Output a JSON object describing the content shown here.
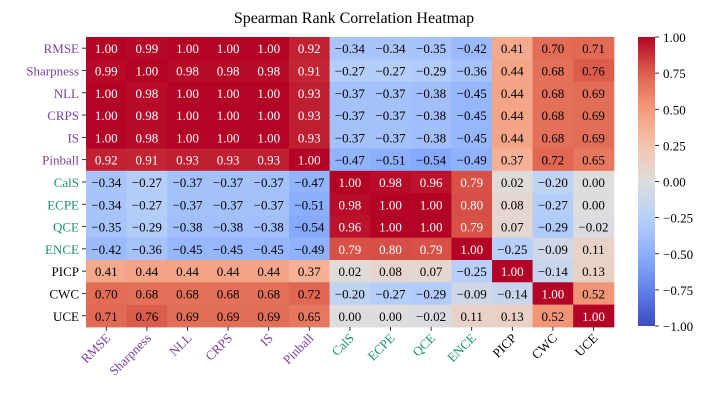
{
  "chart_data": {
    "type": "heatmap",
    "title": "Spearman Rank Correlation Heatmap",
    "labels": [
      "RMSE",
      "Sharpness",
      "NLL",
      "CRPS",
      "IS",
      "Pinball",
      "CalS",
      "ECPE",
      "QCE",
      "ENCE",
      "PICP",
      "CWC",
      "UCE"
    ],
    "label_groups": [
      "accuracy",
      "accuracy",
      "accuracy",
      "accuracy",
      "accuracy",
      "accuracy",
      "calibration",
      "calibration",
      "calibration",
      "calibration",
      "other",
      "other",
      "other"
    ],
    "group_colors": {
      "accuracy": "#7b3f9e",
      "calibration": "#17936b",
      "other": "#000000"
    },
    "matrix": [
      [
        1.0,
        0.99,
        1.0,
        1.0,
        1.0,
        0.92,
        -0.34,
        -0.34,
        -0.35,
        -0.42,
        0.41,
        0.7,
        0.71
      ],
      [
        0.99,
        1.0,
        0.98,
        0.98,
        0.98,
        0.91,
        -0.27,
        -0.27,
        -0.29,
        -0.36,
        0.44,
        0.68,
        0.76
      ],
      [
        1.0,
        0.98,
        1.0,
        1.0,
        1.0,
        0.93,
        -0.37,
        -0.37,
        -0.38,
        -0.45,
        0.44,
        0.68,
        0.69
      ],
      [
        1.0,
        0.98,
        1.0,
        1.0,
        1.0,
        0.93,
        -0.37,
        -0.37,
        -0.38,
        -0.45,
        0.44,
        0.68,
        0.69
      ],
      [
        1.0,
        0.98,
        1.0,
        1.0,
        1.0,
        0.93,
        -0.37,
        -0.37,
        -0.38,
        -0.45,
        0.44,
        0.68,
        0.69
      ],
      [
        0.92,
        0.91,
        0.93,
        0.93,
        0.93,
        1.0,
        -0.47,
        -0.51,
        -0.54,
        -0.49,
        0.37,
        0.72,
        0.65
      ],
      [
        -0.34,
        -0.27,
        -0.37,
        -0.37,
        -0.37,
        -0.47,
        1.0,
        0.98,
        0.96,
        0.79,
        0.02,
        -0.2,
        0.0
      ],
      [
        -0.34,
        -0.27,
        -0.37,
        -0.37,
        -0.37,
        -0.51,
        0.98,
        1.0,
        1.0,
        0.8,
        0.08,
        -0.27,
        0.0
      ],
      [
        -0.35,
        -0.29,
        -0.38,
        -0.38,
        -0.38,
        -0.54,
        0.96,
        1.0,
        1.0,
        0.79,
        0.07,
        -0.29,
        -0.02
      ],
      [
        -0.42,
        -0.36,
        -0.45,
        -0.45,
        -0.45,
        -0.49,
        0.79,
        0.8,
        0.79,
        1.0,
        -0.25,
        -0.09,
        0.11
      ],
      [
        0.41,
        0.44,
        0.44,
        0.44,
        0.44,
        0.37,
        0.02,
        0.08,
        0.07,
        -0.25,
        1.0,
        -0.14,
        0.13
      ],
      [
        0.7,
        0.68,
        0.68,
        0.68,
        0.68,
        0.72,
        -0.2,
        -0.27,
        -0.29,
        -0.09,
        -0.14,
        1.0,
        0.52
      ],
      [
        0.71,
        0.76,
        0.69,
        0.69,
        0.69,
        0.65,
        0.0,
        0.0,
        -0.02,
        0.11,
        0.13,
        0.52,
        1.0
      ]
    ],
    "colormap": "coolwarm",
    "vmin": -1.0,
    "vmax": 1.0,
    "colorbar_ticks": [
      "1.00",
      "0.75",
      "0.50",
      "0.25",
      "0.00",
      "−0.25",
      "−0.50",
      "−0.75",
      "−1.00"
    ]
  }
}
